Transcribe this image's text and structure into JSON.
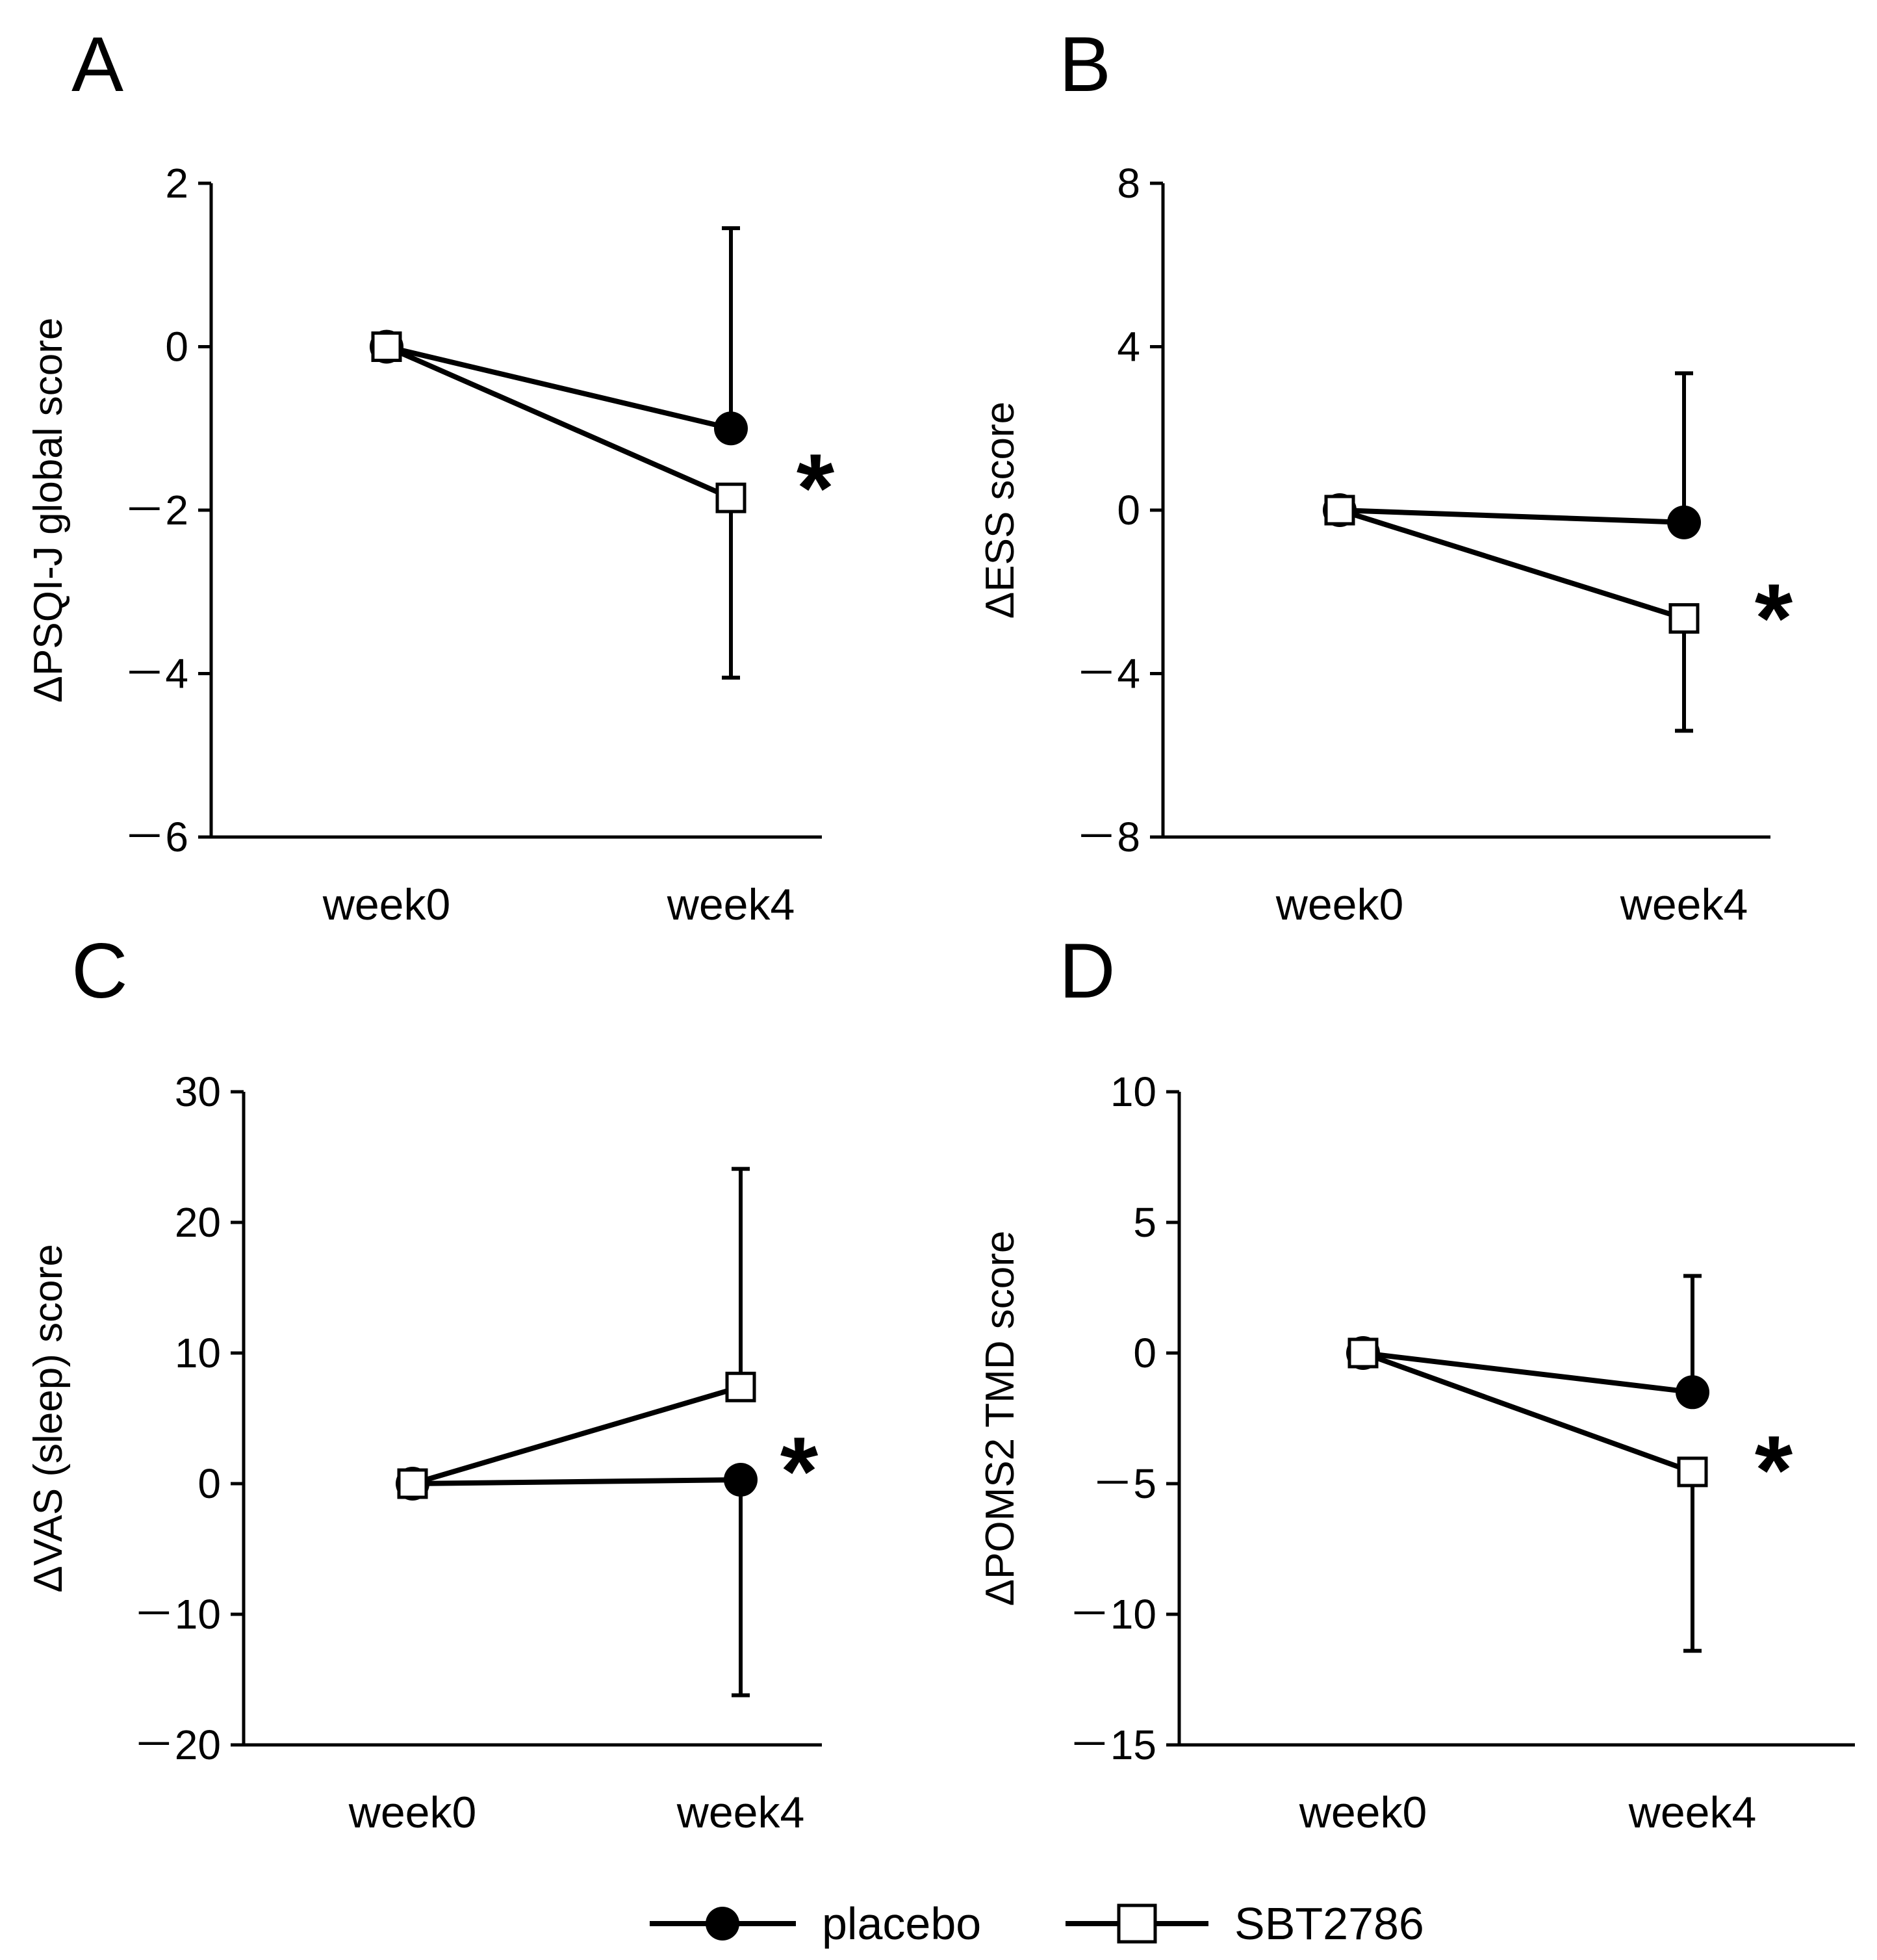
{
  "chart_data": [
    {
      "type": "line",
      "panel": "A",
      "ylabel": "ΔPSQI-J global score",
      "ylim": [
        -6,
        2
      ],
      "yticks": [
        2,
        0,
        -2,
        -4,
        -6
      ],
      "ytick_labels": [
        "2",
        "0",
        "－2",
        "－4",
        "－6"
      ],
      "categories": [
        "week0",
        "week4"
      ],
      "series": [
        {
          "name": "placebo",
          "marker": "filled-circle",
          "values": [
            0,
            -1.0
          ],
          "error_upper": [
            0,
            1.45
          ],
          "error_lower": [
            0,
            null
          ]
        },
        {
          "name": "SBT2786",
          "marker": "open-square",
          "values": [
            0,
            -1.85
          ],
          "error_upper": [
            0,
            null
          ],
          "error_lower": [
            0,
            -4.05
          ]
        }
      ],
      "significance": "*"
    },
    {
      "type": "line",
      "panel": "B",
      "ylabel": "ΔESS score",
      "ylim": [
        -8,
        8
      ],
      "yticks": [
        8,
        4,
        0,
        -4,
        -8
      ],
      "ytick_labels": [
        "8",
        "4",
        "0",
        "－4",
        "－8"
      ],
      "categories": [
        "week0",
        "week4"
      ],
      "series": [
        {
          "name": "placebo",
          "marker": "filled-circle",
          "values": [
            0,
            -0.3
          ],
          "error_upper": [
            0,
            3.35
          ],
          "error_lower": [
            0,
            null
          ]
        },
        {
          "name": "SBT2786",
          "marker": "open-square",
          "values": [
            0,
            -2.65
          ],
          "error_upper": [
            0,
            null
          ],
          "error_lower": [
            0,
            -5.4
          ]
        }
      ],
      "significance": "*"
    },
    {
      "type": "line",
      "panel": "C",
      "ylabel": "ΔVAS (sleep) score",
      "ylim": [
        -20,
        30
      ],
      "yticks": [
        30,
        20,
        10,
        0,
        -10,
        -20
      ],
      "ytick_labels": [
        "30",
        "20",
        "10",
        "0",
        "－10",
        "－20"
      ],
      "categories": [
        "week0",
        "week4"
      ],
      "series": [
        {
          "name": "placebo",
          "marker": "filled-circle",
          "values": [
            0,
            0.3
          ],
          "error_upper": [
            0,
            null
          ],
          "error_lower": [
            0,
            -16.2
          ]
        },
        {
          "name": "SBT2786",
          "marker": "open-square",
          "values": [
            0,
            7.4
          ],
          "error_upper": [
            0,
            24.1
          ],
          "error_lower": [
            0,
            null
          ]
        }
      ],
      "significance": "*"
    },
    {
      "type": "line",
      "panel": "D",
      "ylabel": "ΔPOMS2 TMD score",
      "ylim": [
        -15,
        10
      ],
      "yticks": [
        10,
        5,
        0,
        -5,
        -10,
        -15
      ],
      "ytick_labels": [
        "10",
        "5",
        "0",
        "－5",
        "－10",
        "－15"
      ],
      "categories": [
        "week0",
        "week4"
      ],
      "series": [
        {
          "name": "placebo",
          "marker": "filled-circle",
          "values": [
            0,
            -1.5
          ],
          "error_upper": [
            0,
            2.95
          ],
          "error_lower": [
            0,
            null
          ]
        },
        {
          "name": "SBT2786",
          "marker": "open-square",
          "values": [
            0,
            -4.55
          ],
          "error_upper": [
            0,
            null
          ],
          "error_lower": [
            0,
            -11.4
          ]
        }
      ],
      "significance": "*"
    }
  ],
  "legend": [
    {
      "name": "placebo",
      "marker": "filled-circle"
    },
    {
      "name": "SBT2786",
      "marker": "open-square"
    }
  ]
}
